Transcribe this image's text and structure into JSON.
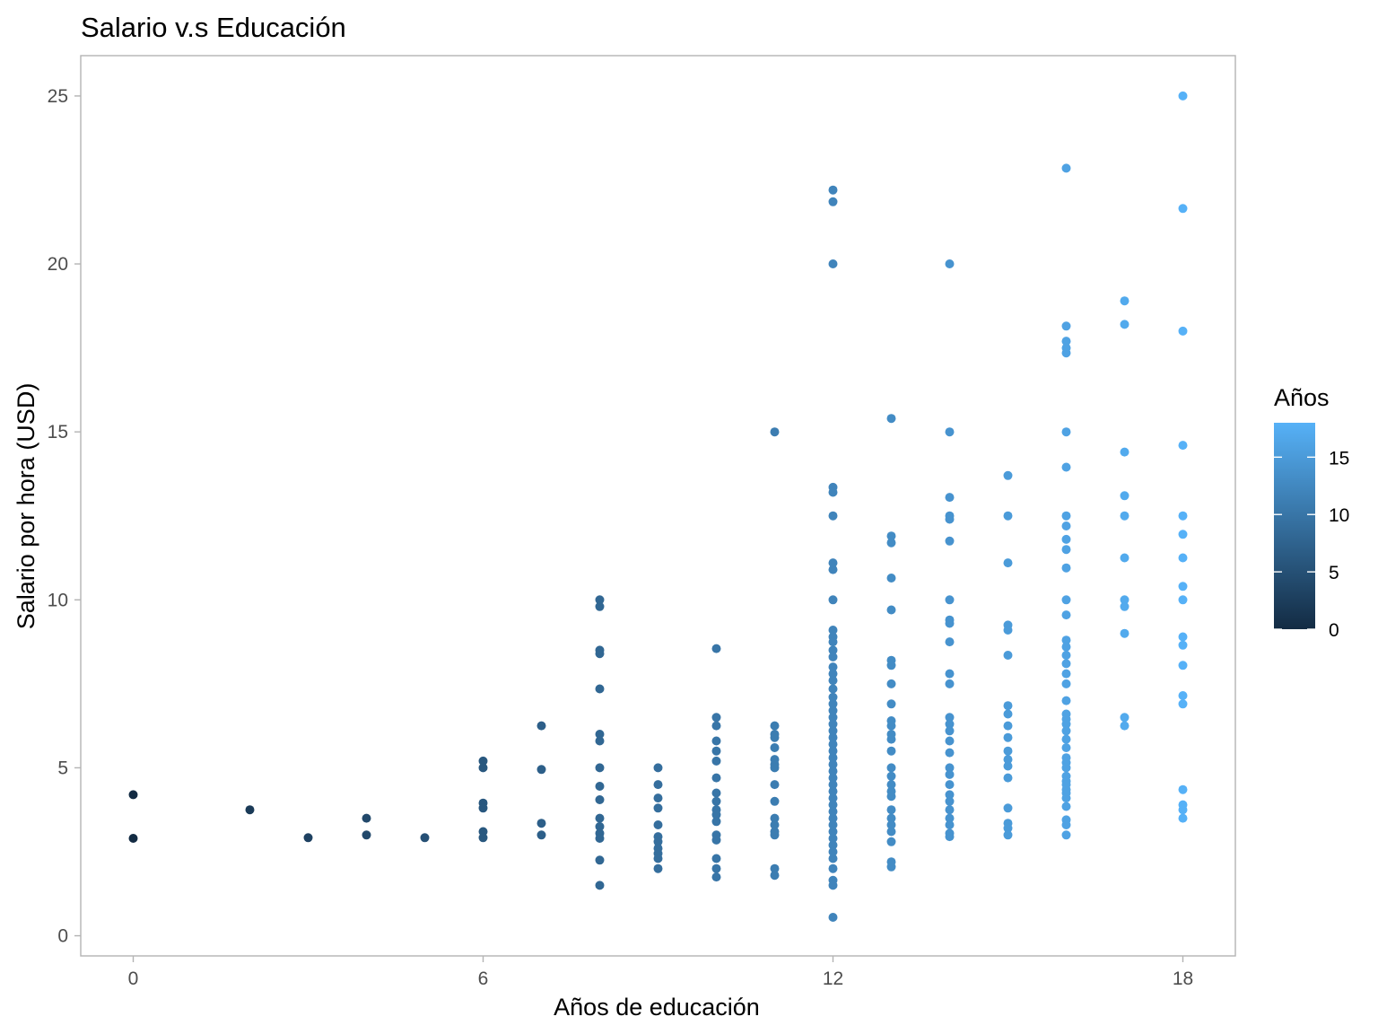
{
  "chart_data": {
    "type": "scatter",
    "title": "Salario v.s Educación",
    "xlabel": "Años de educación",
    "ylabel": "Salario por hora (USD)",
    "xlim": [
      -0.9,
      18.9
    ],
    "ylim": [
      -0.6,
      26.2
    ],
    "xticks": [
      0,
      6,
      12,
      18
    ],
    "yticks": [
      0,
      5,
      10,
      15,
      20,
      25
    ],
    "grid": false,
    "legend": {
      "title": "Años",
      "type": "colorbar",
      "placement": "right",
      "range": [
        0,
        18
      ],
      "ticks": [
        0,
        5,
        10,
        15
      ],
      "color_low": "#132b43",
      "color_high": "#56b1f7"
    },
    "points": [
      [
        0,
        4.2
      ],
      [
        0,
        2.9
      ],
      [
        2,
        3.75
      ],
      [
        3,
        2.92
      ],
      [
        4,
        3.5
      ],
      [
        4,
        3.0
      ],
      [
        5,
        2.92
      ],
      [
        6,
        5.2
      ],
      [
        6,
        5.0
      ],
      [
        6,
        3.95
      ],
      [
        6,
        3.8
      ],
      [
        6,
        3.1
      ],
      [
        6,
        2.92
      ],
      [
        7,
        6.25
      ],
      [
        7,
        4.95
      ],
      [
        7,
        3.35
      ],
      [
        7,
        3.0
      ],
      [
        8,
        10.0
      ],
      [
        8,
        9.8
      ],
      [
        8,
        8.5
      ],
      [
        8,
        8.4
      ],
      [
        8,
        7.35
      ],
      [
        8,
        6.0
      ],
      [
        8,
        5.8
      ],
      [
        8,
        5.0
      ],
      [
        8,
        4.45
      ],
      [
        8,
        4.05
      ],
      [
        8,
        3.5
      ],
      [
        8,
        3.25
      ],
      [
        8,
        3.05
      ],
      [
        8,
        2.9
      ],
      [
        8,
        2.25
      ],
      [
        8,
        1.5
      ],
      [
        9,
        5.0
      ],
      [
        9,
        4.5
      ],
      [
        9,
        4.1
      ],
      [
        9,
        3.8
      ],
      [
        9,
        3.3
      ],
      [
        9,
        2.95
      ],
      [
        9,
        2.8
      ],
      [
        9,
        2.6
      ],
      [
        9,
        2.45
      ],
      [
        9,
        2.3
      ],
      [
        9,
        2.0
      ],
      [
        10,
        8.55
      ],
      [
        10,
        6.5
      ],
      [
        10,
        6.25
      ],
      [
        10,
        5.8
      ],
      [
        10,
        5.5
      ],
      [
        10,
        5.2
      ],
      [
        10,
        4.7
      ],
      [
        10,
        4.25
      ],
      [
        10,
        4.0
      ],
      [
        10,
        3.75
      ],
      [
        10,
        3.6
      ],
      [
        10,
        3.4
      ],
      [
        10,
        3.0
      ],
      [
        10,
        2.85
      ],
      [
        10,
        2.3
      ],
      [
        10,
        2.0
      ],
      [
        10,
        1.75
      ],
      [
        11,
        15.0
      ],
      [
        11,
        6.25
      ],
      [
        11,
        6.0
      ],
      [
        11,
        5.9
      ],
      [
        11,
        5.6
      ],
      [
        11,
        5.25
      ],
      [
        11,
        5.1
      ],
      [
        11,
        5.0
      ],
      [
        11,
        4.5
      ],
      [
        11,
        4.0
      ],
      [
        11,
        3.5
      ],
      [
        11,
        3.3
      ],
      [
        11,
        3.1
      ],
      [
        11,
        3.0
      ],
      [
        11,
        2.0
      ],
      [
        11,
        1.8
      ],
      [
        12,
        22.2
      ],
      [
        12,
        21.85
      ],
      [
        12,
        20.0
      ],
      [
        12,
        13.35
      ],
      [
        12,
        13.2
      ],
      [
        12,
        12.5
      ],
      [
        12,
        11.1
      ],
      [
        12,
        10.9
      ],
      [
        12,
        10.0
      ],
      [
        12,
        9.1
      ],
      [
        12,
        8.9
      ],
      [
        12,
        8.75
      ],
      [
        12,
        8.5
      ],
      [
        12,
        8.3
      ],
      [
        12,
        8.0
      ],
      [
        12,
        7.8
      ],
      [
        12,
        7.6
      ],
      [
        12,
        7.35
      ],
      [
        12,
        7.1
      ],
      [
        12,
        6.9
      ],
      [
        12,
        6.7
      ],
      [
        12,
        6.5
      ],
      [
        12,
        6.3
      ],
      [
        12,
        6.1
      ],
      [
        12,
        5.9
      ],
      [
        12,
        5.7
      ],
      [
        12,
        5.5
      ],
      [
        12,
        5.3
      ],
      [
        12,
        5.1
      ],
      [
        12,
        4.9
      ],
      [
        12,
        4.7
      ],
      [
        12,
        4.5
      ],
      [
        12,
        4.3
      ],
      [
        12,
        4.1
      ],
      [
        12,
        3.9
      ],
      [
        12,
        3.7
      ],
      [
        12,
        3.5
      ],
      [
        12,
        3.3
      ],
      [
        12,
        3.1
      ],
      [
        12,
        2.9
      ],
      [
        12,
        2.7
      ],
      [
        12,
        2.5
      ],
      [
        12,
        2.3
      ],
      [
        12,
        2.0
      ],
      [
        12,
        1.65
      ],
      [
        12,
        1.5
      ],
      [
        12,
        0.55
      ],
      [
        13,
        15.4
      ],
      [
        13,
        11.9
      ],
      [
        13,
        11.7
      ],
      [
        13,
        10.65
      ],
      [
        13,
        9.7
      ],
      [
        13,
        8.2
      ],
      [
        13,
        8.05
      ],
      [
        13,
        7.5
      ],
      [
        13,
        6.9
      ],
      [
        13,
        6.4
      ],
      [
        13,
        6.25
      ],
      [
        13,
        6.0
      ],
      [
        13,
        5.85
      ],
      [
        13,
        5.5
      ],
      [
        13,
        5.0
      ],
      [
        13,
        4.75
      ],
      [
        13,
        4.5
      ],
      [
        13,
        4.3
      ],
      [
        13,
        4.15
      ],
      [
        13,
        3.75
      ],
      [
        13,
        3.5
      ],
      [
        13,
        3.3
      ],
      [
        13,
        3.1
      ],
      [
        13,
        2.8
      ],
      [
        13,
        2.2
      ],
      [
        13,
        2.05
      ],
      [
        14,
        20.0
      ],
      [
        14,
        15.0
      ],
      [
        14,
        13.05
      ],
      [
        14,
        12.5
      ],
      [
        14,
        12.4
      ],
      [
        14,
        11.75
      ],
      [
        14,
        10.0
      ],
      [
        14,
        9.4
      ],
      [
        14,
        9.3
      ],
      [
        14,
        8.75
      ],
      [
        14,
        7.8
      ],
      [
        14,
        7.5
      ],
      [
        14,
        6.5
      ],
      [
        14,
        6.3
      ],
      [
        14,
        6.1
      ],
      [
        14,
        5.8
      ],
      [
        14,
        5.45
      ],
      [
        14,
        5.0
      ],
      [
        14,
        4.8
      ],
      [
        14,
        4.5
      ],
      [
        14,
        4.2
      ],
      [
        14,
        4.0
      ],
      [
        14,
        3.75
      ],
      [
        14,
        3.5
      ],
      [
        14,
        3.3
      ],
      [
        14,
        3.05
      ],
      [
        14,
        2.95
      ],
      [
        15,
        13.7
      ],
      [
        15,
        12.5
      ],
      [
        15,
        11.1
      ],
      [
        15,
        9.25
      ],
      [
        15,
        9.1
      ],
      [
        15,
        8.35
      ],
      [
        15,
        6.85
      ],
      [
        15,
        6.6
      ],
      [
        15,
        6.25
      ],
      [
        15,
        5.9
      ],
      [
        15,
        5.5
      ],
      [
        15,
        5.25
      ],
      [
        15,
        5.05
      ],
      [
        15,
        4.7
      ],
      [
        15,
        3.8
      ],
      [
        15,
        3.35
      ],
      [
        15,
        3.2
      ],
      [
        15,
        3.0
      ],
      [
        16,
        22.85
      ],
      [
        16,
        18.15
      ],
      [
        16,
        17.7
      ],
      [
        16,
        17.5
      ],
      [
        16,
        17.35
      ],
      [
        16,
        15.0
      ],
      [
        16,
        13.95
      ],
      [
        16,
        12.5
      ],
      [
        16,
        12.2
      ],
      [
        16,
        11.8
      ],
      [
        16,
        11.5
      ],
      [
        16,
        10.95
      ],
      [
        16,
        10.0
      ],
      [
        16,
        9.55
      ],
      [
        16,
        8.8
      ],
      [
        16,
        8.6
      ],
      [
        16,
        8.35
      ],
      [
        16,
        8.1
      ],
      [
        16,
        7.8
      ],
      [
        16,
        7.5
      ],
      [
        16,
        7.0
      ],
      [
        16,
        6.6
      ],
      [
        16,
        6.45
      ],
      [
        16,
        6.3
      ],
      [
        16,
        6.1
      ],
      [
        16,
        5.85
      ],
      [
        16,
        5.6
      ],
      [
        16,
        5.3
      ],
      [
        16,
        5.15
      ],
      [
        16,
        5.0
      ],
      [
        16,
        4.75
      ],
      [
        16,
        4.6
      ],
      [
        16,
        4.5
      ],
      [
        16,
        4.35
      ],
      [
        16,
        4.25
      ],
      [
        16,
        4.1
      ],
      [
        16,
        3.85
      ],
      [
        16,
        3.45
      ],
      [
        16,
        3.3
      ],
      [
        16,
        3.0
      ],
      [
        17,
        18.9
      ],
      [
        17,
        18.2
      ],
      [
        17,
        14.4
      ],
      [
        17,
        13.1
      ],
      [
        17,
        12.5
      ],
      [
        17,
        11.25
      ],
      [
        17,
        10.0
      ],
      [
        17,
        9.8
      ],
      [
        17,
        9.0
      ],
      [
        17,
        6.5
      ],
      [
        17,
        6.25
      ],
      [
        18,
        25.0
      ],
      [
        18,
        21.65
      ],
      [
        18,
        18.0
      ],
      [
        18,
        14.6
      ],
      [
        18,
        12.5
      ],
      [
        18,
        11.95
      ],
      [
        18,
        11.25
      ],
      [
        18,
        10.4
      ],
      [
        18,
        10.0
      ],
      [
        18,
        8.9
      ],
      [
        18,
        8.65
      ],
      [
        18,
        8.05
      ],
      [
        18,
        7.15
      ],
      [
        18,
        6.9
      ],
      [
        18,
        4.35
      ],
      [
        18,
        3.9
      ],
      [
        18,
        3.75
      ],
      [
        18,
        3.5
      ]
    ]
  }
}
